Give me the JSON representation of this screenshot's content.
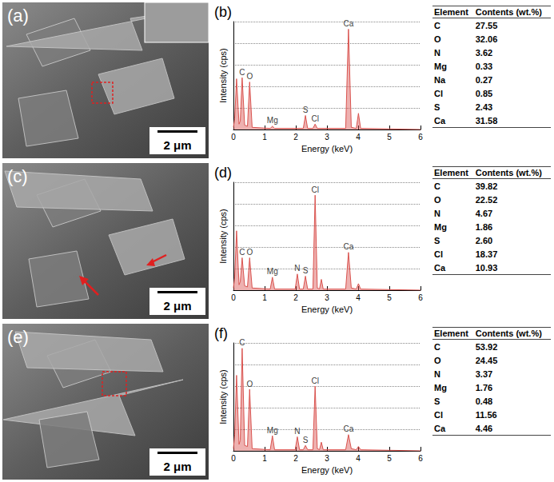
{
  "chart_data": [
    {
      "type": "line",
      "title": "(b)",
      "x_label": "Energy (keV)",
      "y_label": "Intensity (cps)",
      "color": "#d9534f",
      "x": [
        0,
        0.04,
        0.1,
        0.18,
        0.22,
        0.28,
        0.36,
        0.45,
        0.52,
        0.6,
        1.18,
        1.25,
        1.32,
        2.24,
        2.31,
        2.38,
        2.55,
        2.62,
        2.69,
        3.6,
        3.69,
        3.78,
        3.94,
        4.01,
        4.08,
        6
      ],
      "values": [
        2,
        10,
        47,
        5,
        8,
        48,
        4,
        3,
        44,
        2,
        1,
        3,
        1,
        1,
        13,
        1,
        1,
        5,
        1,
        1,
        93,
        2,
        1,
        15,
        1,
        0
      ],
      "annotations": [
        {
          "text": "C",
          "x": 0.28,
          "y": 48
        },
        {
          "text": "O",
          "x": 0.52,
          "y": 44
        },
        {
          "text": "Mg",
          "x": 1.25,
          "y": 3
        },
        {
          "text": "S",
          "x": 2.31,
          "y": 13
        },
        {
          "text": "Cl",
          "x": 2.62,
          "y": 5
        },
        {
          "text": "Ca",
          "x": 3.69,
          "y": 93
        }
      ],
      "xlim": [
        0,
        6
      ],
      "xticks": [
        0,
        1,
        2,
        3,
        4,
        5,
        6
      ],
      "ylim": [
        0,
        100
      ],
      "yticks": [
        0,
        20,
        40,
        60,
        80,
        100
      ],
      "grid": true,
      "tick_labels": "x"
    },
    {
      "type": "line",
      "title": "(d)",
      "x_label": "Energy (keV)",
      "y_label": "Intensity (cps)",
      "color": "#d9534f",
      "x": [
        0,
        0.04,
        0.1,
        0.18,
        0.22,
        0.28,
        0.36,
        0.45,
        0.52,
        0.6,
        1.18,
        1.25,
        1.32,
        1.98,
        2.05,
        2.12,
        2.24,
        2.31,
        2.38,
        2.55,
        2.62,
        2.69,
        2.76,
        2.82,
        2.88,
        3.6,
        3.69,
        3.78,
        3.94,
        4.01,
        4.08,
        6
      ],
      "values": [
        2,
        12,
        55,
        5,
        8,
        30,
        4,
        3,
        30,
        2,
        1,
        12,
        1,
        1,
        15,
        1,
        1,
        13,
        1,
        1,
        88,
        2,
        1,
        10,
        1,
        1,
        35,
        2,
        1,
        6,
        1,
        0
      ],
      "annotations": [
        {
          "text": "C",
          "x": 0.28,
          "y": 30
        },
        {
          "text": "O",
          "x": 0.52,
          "y": 30
        },
        {
          "text": "Mg",
          "x": 1.25,
          "y": 12
        },
        {
          "text": "N",
          "x": 2.05,
          "y": 15
        },
        {
          "text": "S",
          "x": 2.31,
          "y": 13
        },
        {
          "text": "Cl",
          "x": 2.62,
          "y": 88
        },
        {
          "text": "Ca",
          "x": 3.69,
          "y": 35
        }
      ],
      "xlim": [
        0,
        6
      ],
      "xticks": [
        0,
        1,
        2,
        3,
        4,
        5,
        6
      ],
      "ylim": [
        0,
        100
      ],
      "yticks": [
        0,
        20,
        40,
        60,
        80,
        100
      ],
      "grid": true,
      "tick_labels": "x"
    },
    {
      "type": "line",
      "title": "(f)",
      "x_label": "Energy (keV)",
      "y_label": "Intensity (cps)",
      "color": "#d9534f",
      "x": [
        0,
        0.04,
        0.1,
        0.18,
        0.22,
        0.28,
        0.36,
        0.45,
        0.52,
        0.6,
        1.18,
        1.25,
        1.32,
        1.98,
        2.05,
        2.12,
        2.24,
        2.31,
        2.38,
        2.55,
        2.62,
        2.69,
        2.76,
        2.82,
        2.88,
        3.6,
        3.69,
        3.78,
        3.94,
        4.01,
        4.08,
        6
      ],
      "values": [
        2,
        15,
        70,
        6,
        10,
        95,
        5,
        4,
        57,
        2,
        1,
        14,
        1,
        1,
        13,
        1,
        1,
        5,
        1,
        1,
        60,
        2,
        1,
        8,
        1,
        1,
        15,
        2,
        1,
        4,
        1,
        0
      ],
      "annotations": [
        {
          "text": "C",
          "x": 0.28,
          "y": 95
        },
        {
          "text": "O",
          "x": 0.52,
          "y": 57
        },
        {
          "text": "Mg",
          "x": 1.25,
          "y": 14
        },
        {
          "text": "N",
          "x": 2.05,
          "y": 13
        },
        {
          "text": "S",
          "x": 2.31,
          "y": 5
        },
        {
          "text": "Cl",
          "x": 2.62,
          "y": 60
        },
        {
          "text": "Ca",
          "x": 3.69,
          "y": 15
        }
      ],
      "xlim": [
        0,
        6
      ],
      "xticks": [
        0,
        1,
        2,
        3,
        4,
        5,
        6
      ],
      "ylim": [
        0,
        100
      ],
      "yticks": [
        0,
        20,
        40,
        60,
        80,
        100
      ],
      "grid": true,
      "tick_labels": "x"
    }
  ],
  "images": [
    {
      "label": "(a)",
      "scale_bar": "2 μm"
    },
    {
      "label": "(c)",
      "scale_bar": "2 μm"
    },
    {
      "label": "(e)",
      "scale_bar": "2 μm"
    }
  ],
  "tables": [
    {
      "header": [
        "Element",
        "Contents (wt.%)"
      ],
      "rows": [
        [
          "C",
          "27.55"
        ],
        [
          "O",
          "32.06"
        ],
        [
          "N",
          "3.62"
        ],
        [
          "Mg",
          "0.33"
        ],
        [
          "Na",
          "0.27"
        ],
        [
          "Cl",
          "0.85"
        ],
        [
          "S",
          "2.43"
        ],
        [
          "Ca",
          "31.58"
        ]
      ]
    },
    {
      "header": [
        "Element",
        "Contents (wt.%)"
      ],
      "rows": [
        [
          "C",
          "39.82"
        ],
        [
          "O",
          "22.52"
        ],
        [
          "N",
          "4.67"
        ],
        [
          "Mg",
          "1.86"
        ],
        [
          "S",
          "2.60"
        ],
        [
          "Cl",
          "18.37"
        ],
        [
          "Ca",
          "10.93"
        ]
      ]
    },
    {
      "header": [
        "Element",
        "Contents (wt.%)"
      ],
      "rows": [
        [
          "C",
          "53.92"
        ],
        [
          "O",
          "24.45"
        ],
        [
          "N",
          "3.37"
        ],
        [
          "Mg",
          "1.76"
        ],
        [
          "S",
          "0.48"
        ],
        [
          "Cl",
          "11.56"
        ],
        [
          "Ca",
          "4.46"
        ]
      ]
    }
  ]
}
